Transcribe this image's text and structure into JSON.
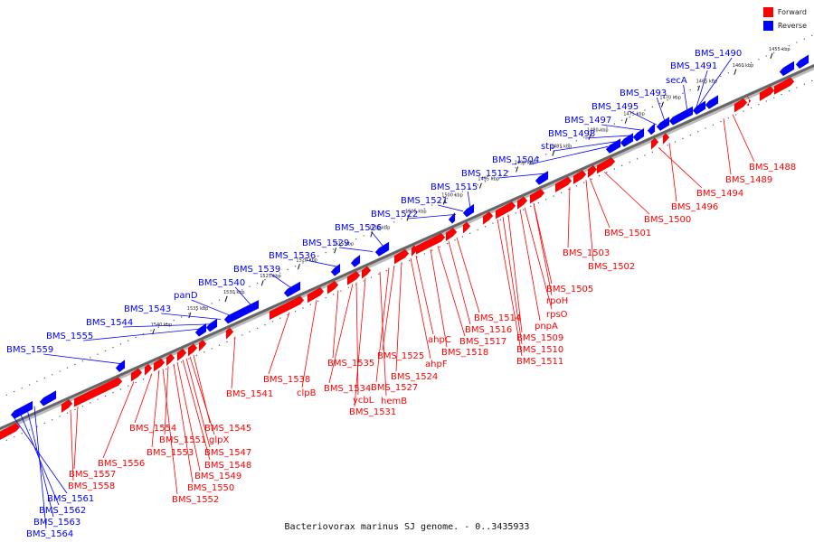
{
  "legend": [
    {
      "label": "Forward",
      "color": "#ff0000"
    },
    {
      "label": "Reverse",
      "color": "#0000ff"
    }
  ],
  "caption": "Bacteriovorax marinus SJ genome. - 0..3435933",
  "colors": {
    "forward": "#ff0000",
    "reverse": "#0000ff",
    "backbone": "#666666"
  },
  "ticks": [
    "1455 kbp",
    "1460 kbp",
    "1465 kbp",
    "1470 kbp",
    "1475 kbp",
    "1480 kbp",
    "1485 kbp",
    "1490 kbp",
    "1495 kbp",
    "1500 kbp",
    "1505 kbp",
    "1510 kbp",
    "1515 kbp",
    "1520 kbp",
    "1525 kbp",
    "1530 kbp",
    "1535 kbp",
    "1540 kbp"
  ],
  "reverse_labels": [
    "BMS_1490",
    "BMS_1491",
    "secA",
    "BMS_1493",
    "BMS_1495",
    "BMS_1497",
    "BMS_1498",
    "stp",
    "BMS_1504",
    "BMS_1512",
    "BMS_1515",
    "BMS_1521",
    "BMS_1522",
    "BMS_1526",
    "BMS_1529",
    "BMS_1536",
    "BMS_1539",
    "BMS_1540",
    "panD",
    "BMS_1543",
    "BMS_1544",
    "BMS_1555",
    "BMS_1559",
    "BMS_1561",
    "BMS_1562",
    "BMS_1563",
    "BMS_1564"
  ],
  "forward_labels": [
    "BMS_1488",
    "BMS_1489",
    "BMS_1494",
    "BMS_1496",
    "BMS_1500",
    "BMS_1501",
    "BMS_1502",
    "BMS_1503",
    "BMS_1505",
    "rpoH",
    "rpsO",
    "pnpA",
    "BMS_1509",
    "BMS_1510",
    "BMS_1511",
    "BMS_1514",
    "BMS_1516",
    "BMS_1517",
    "BMS_1518",
    "ahpC",
    "ahpF",
    "BMS_1524",
    "BMS_1525",
    "BMS_1527",
    "hemB",
    "BMS_1531",
    "ycbL",
    "BMS_1534",
    "BMS_1535",
    "clpB",
    "BMS_1538",
    "BMS_1541",
    "BMS_1545",
    "glpX",
    "BMS_1547",
    "BMS_1548",
    "BMS_1549",
    "BMS_1550",
    "BMS_1552",
    "BMS_1551",
    "BMS_1553",
    "BMS_1554",
    "BMS_1556",
    "BMS_1557",
    "BMS_1558"
  ]
}
